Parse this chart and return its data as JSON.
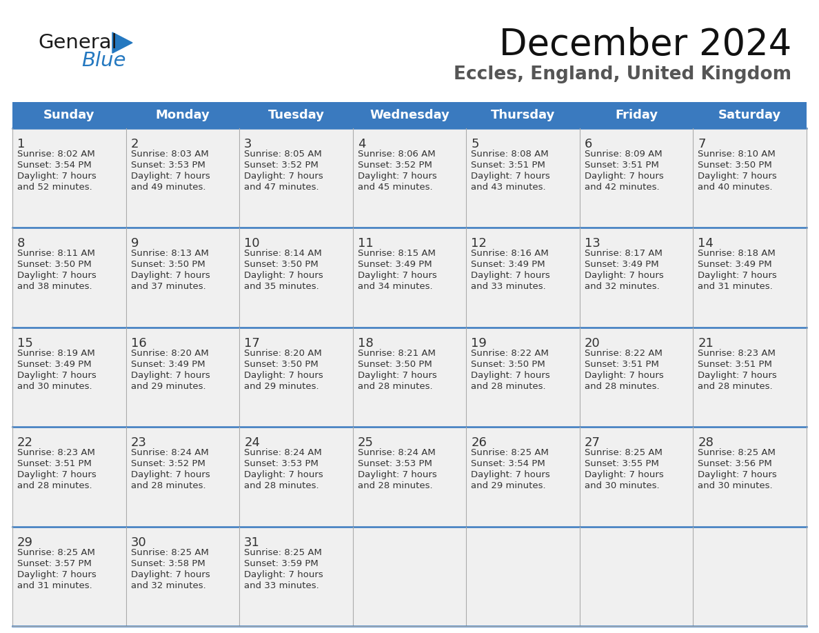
{
  "title": "December 2024",
  "subtitle": "Eccles, England, United Kingdom",
  "header_color": "#3a7abf",
  "header_text_color": "#ffffff",
  "cell_bg_color": "#f0f0f0",
  "border_color_blue": "#3a7abf",
  "border_color_light": "#aaaaaa",
  "days_of_week": [
    "Sunday",
    "Monday",
    "Tuesday",
    "Wednesday",
    "Thursday",
    "Friday",
    "Saturday"
  ],
  "calendar_data": [
    [
      {
        "day": "1",
        "sunrise": "8:02 AM",
        "sunset": "3:54 PM",
        "daylight_h": "7 hours",
        "daylight_m": "and 52 minutes."
      },
      {
        "day": "2",
        "sunrise": "8:03 AM",
        "sunset": "3:53 PM",
        "daylight_h": "7 hours",
        "daylight_m": "and 49 minutes."
      },
      {
        "day": "3",
        "sunrise": "8:05 AM",
        "sunset": "3:52 PM",
        "daylight_h": "7 hours",
        "daylight_m": "and 47 minutes."
      },
      {
        "day": "4",
        "sunrise": "8:06 AM",
        "sunset": "3:52 PM",
        "daylight_h": "7 hours",
        "daylight_m": "and 45 minutes."
      },
      {
        "day": "5",
        "sunrise": "8:08 AM",
        "sunset": "3:51 PM",
        "daylight_h": "7 hours",
        "daylight_m": "and 43 minutes."
      },
      {
        "day": "6",
        "sunrise": "8:09 AM",
        "sunset": "3:51 PM",
        "daylight_h": "7 hours",
        "daylight_m": "and 42 minutes."
      },
      {
        "day": "7",
        "sunrise": "8:10 AM",
        "sunset": "3:50 PM",
        "daylight_h": "7 hours",
        "daylight_m": "and 40 minutes."
      }
    ],
    [
      {
        "day": "8",
        "sunrise": "8:11 AM",
        "sunset": "3:50 PM",
        "daylight_h": "7 hours",
        "daylight_m": "and 38 minutes."
      },
      {
        "day": "9",
        "sunrise": "8:13 AM",
        "sunset": "3:50 PM",
        "daylight_h": "7 hours",
        "daylight_m": "and 37 minutes."
      },
      {
        "day": "10",
        "sunrise": "8:14 AM",
        "sunset": "3:50 PM",
        "daylight_h": "7 hours",
        "daylight_m": "and 35 minutes."
      },
      {
        "day": "11",
        "sunrise": "8:15 AM",
        "sunset": "3:49 PM",
        "daylight_h": "7 hours",
        "daylight_m": "and 34 minutes."
      },
      {
        "day": "12",
        "sunrise": "8:16 AM",
        "sunset": "3:49 PM",
        "daylight_h": "7 hours",
        "daylight_m": "and 33 minutes."
      },
      {
        "day": "13",
        "sunrise": "8:17 AM",
        "sunset": "3:49 PM",
        "daylight_h": "7 hours",
        "daylight_m": "and 32 minutes."
      },
      {
        "day": "14",
        "sunrise": "8:18 AM",
        "sunset": "3:49 PM",
        "daylight_h": "7 hours",
        "daylight_m": "and 31 minutes."
      }
    ],
    [
      {
        "day": "15",
        "sunrise": "8:19 AM",
        "sunset": "3:49 PM",
        "daylight_h": "7 hours",
        "daylight_m": "and 30 minutes."
      },
      {
        "day": "16",
        "sunrise": "8:20 AM",
        "sunset": "3:49 PM",
        "daylight_h": "7 hours",
        "daylight_m": "and 29 minutes."
      },
      {
        "day": "17",
        "sunrise": "8:20 AM",
        "sunset": "3:50 PM",
        "daylight_h": "7 hours",
        "daylight_m": "and 29 minutes."
      },
      {
        "day": "18",
        "sunrise": "8:21 AM",
        "sunset": "3:50 PM",
        "daylight_h": "7 hours",
        "daylight_m": "and 28 minutes."
      },
      {
        "day": "19",
        "sunrise": "8:22 AM",
        "sunset": "3:50 PM",
        "daylight_h": "7 hours",
        "daylight_m": "and 28 minutes."
      },
      {
        "day": "20",
        "sunrise": "8:22 AM",
        "sunset": "3:51 PM",
        "daylight_h": "7 hours",
        "daylight_m": "and 28 minutes."
      },
      {
        "day": "21",
        "sunrise": "8:23 AM",
        "sunset": "3:51 PM",
        "daylight_h": "7 hours",
        "daylight_m": "and 28 minutes."
      }
    ],
    [
      {
        "day": "22",
        "sunrise": "8:23 AM",
        "sunset": "3:51 PM",
        "daylight_h": "7 hours",
        "daylight_m": "and 28 minutes."
      },
      {
        "day": "23",
        "sunrise": "8:24 AM",
        "sunset": "3:52 PM",
        "daylight_h": "7 hours",
        "daylight_m": "and 28 minutes."
      },
      {
        "day": "24",
        "sunrise": "8:24 AM",
        "sunset": "3:53 PM",
        "daylight_h": "7 hours",
        "daylight_m": "and 28 minutes."
      },
      {
        "day": "25",
        "sunrise": "8:24 AM",
        "sunset": "3:53 PM",
        "daylight_h": "7 hours",
        "daylight_m": "and 28 minutes."
      },
      {
        "day": "26",
        "sunrise": "8:25 AM",
        "sunset": "3:54 PM",
        "daylight_h": "7 hours",
        "daylight_m": "and 29 minutes."
      },
      {
        "day": "27",
        "sunrise": "8:25 AM",
        "sunset": "3:55 PM",
        "daylight_h": "7 hours",
        "daylight_m": "and 30 minutes."
      },
      {
        "day": "28",
        "sunrise": "8:25 AM",
        "sunset": "3:56 PM",
        "daylight_h": "7 hours",
        "daylight_m": "and 30 minutes."
      }
    ],
    [
      {
        "day": "29",
        "sunrise": "8:25 AM",
        "sunset": "3:57 PM",
        "daylight_h": "7 hours",
        "daylight_m": "and 31 minutes."
      },
      {
        "day": "30",
        "sunrise": "8:25 AM",
        "sunset": "3:58 PM",
        "daylight_h": "7 hours",
        "daylight_m": "and 32 minutes."
      },
      {
        "day": "31",
        "sunrise": "8:25 AM",
        "sunset": "3:59 PM",
        "daylight_h": "7 hours",
        "daylight_m": "and 33 minutes."
      },
      null,
      null,
      null,
      null
    ]
  ],
  "logo_general_color": "#1a1a1a",
  "logo_blue_color": "#2478c0",
  "logo_triangle_color": "#2478c0",
  "title_fontsize": 38,
  "subtitle_fontsize": 19,
  "header_fontsize": 13,
  "day_num_fontsize": 13,
  "cell_text_fontsize": 9.5
}
